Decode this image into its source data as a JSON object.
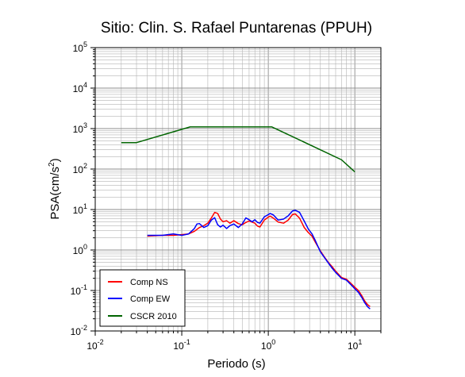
{
  "chart_data": {
    "type": "line",
    "title": "Sitio: Clin. S. Rafael Puntarenas (PPUH)",
    "xlabel": "Periodo (s)",
    "ylabel_base": "PSA(cm/s",
    "ylabel_sup": "2",
    "ylabel_tail": ")",
    "xscale": "log",
    "yscale": "log",
    "xlim": [
      0.01,
      20
    ],
    "ylim": [
      0.01,
      100000
    ],
    "grid": true,
    "legend_position": "bottom-left",
    "x_ticks": [
      {
        "base": "10",
        "exp": "-2",
        "value": 0.01
      },
      {
        "base": "10",
        "exp": "-1",
        "value": 0.1
      },
      {
        "base": "10",
        "exp": "0",
        "value": 1
      },
      {
        "base": "10",
        "exp": "1",
        "value": 10
      }
    ],
    "y_ticks": [
      {
        "base": "10",
        "exp": "-2",
        "value": 0.01
      },
      {
        "base": "10",
        "exp": "-1",
        "value": 0.1
      },
      {
        "base": "10",
        "exp": "0",
        "value": 1
      },
      {
        "base": "10",
        "exp": "1",
        "value": 10
      },
      {
        "base": "10",
        "exp": "2",
        "value": 100
      },
      {
        "base": "10",
        "exp": "3",
        "value": 1000
      },
      {
        "base": "10",
        "exp": "4",
        "value": 10000
      },
      {
        "base": "10",
        "exp": "5",
        "value": 100000
      }
    ],
    "series": [
      {
        "name": "Comp NS",
        "color": "#ff0000",
        "points": [
          [
            0.04,
            2.2
          ],
          [
            0.06,
            2.3
          ],
          [
            0.08,
            2.3
          ],
          [
            0.1,
            2.4
          ],
          [
            0.12,
            2.5
          ],
          [
            0.14,
            2.9
          ],
          [
            0.16,
            3.6
          ],
          [
            0.18,
            4.0
          ],
          [
            0.2,
            4.6
          ],
          [
            0.22,
            6.2
          ],
          [
            0.24,
            8.5
          ],
          [
            0.26,
            8.0
          ],
          [
            0.28,
            5.8
          ],
          [
            0.3,
            5.0
          ],
          [
            0.33,
            5.3
          ],
          [
            0.36,
            4.6
          ],
          [
            0.4,
            5.3
          ],
          [
            0.45,
            4.5
          ],
          [
            0.5,
            4.2
          ],
          [
            0.55,
            4.8
          ],
          [
            0.6,
            5.2
          ],
          [
            0.7,
            4.6
          ],
          [
            0.75,
            3.9
          ],
          [
            0.8,
            3.7
          ],
          [
            0.9,
            5.5
          ],
          [
            1.0,
            6.5
          ],
          [
            1.05,
            6.9
          ],
          [
            1.15,
            6.1
          ],
          [
            1.3,
            4.9
          ],
          [
            1.5,
            4.6
          ],
          [
            1.7,
            5.5
          ],
          [
            1.9,
            7.5
          ],
          [
            2.05,
            7.8
          ],
          [
            2.3,
            6.1
          ],
          [
            2.6,
            3.6
          ],
          [
            2.9,
            2.7
          ],
          [
            3.2,
            2.2
          ],
          [
            3.5,
            1.55
          ],
          [
            4.0,
            0.95
          ],
          [
            4.5,
            0.65
          ],
          [
            5.0,
            0.48
          ],
          [
            5.5,
            0.38
          ],
          [
            6.0,
            0.3
          ],
          [
            7.0,
            0.21
          ],
          [
            8.0,
            0.19
          ],
          [
            9.0,
            0.15
          ],
          [
            10.0,
            0.12
          ],
          [
            11.0,
            0.1
          ],
          [
            12.0,
            0.075
          ],
          [
            13.0,
            0.055
          ],
          [
            14.0,
            0.045
          ],
          [
            15.0,
            0.04
          ]
        ]
      },
      {
        "name": "Comp EW",
        "color": "#0000ff",
        "points": [
          [
            0.04,
            2.3
          ],
          [
            0.06,
            2.3
          ],
          [
            0.08,
            2.5
          ],
          [
            0.1,
            2.3
          ],
          [
            0.12,
            2.5
          ],
          [
            0.14,
            3.4
          ],
          [
            0.15,
            4.4
          ],
          [
            0.16,
            4.5
          ],
          [
            0.18,
            3.6
          ],
          [
            0.2,
            4.0
          ],
          [
            0.22,
            5.5
          ],
          [
            0.24,
            6.3
          ],
          [
            0.26,
            4.2
          ],
          [
            0.28,
            3.7
          ],
          [
            0.3,
            4.1
          ],
          [
            0.33,
            3.4
          ],
          [
            0.36,
            4.0
          ],
          [
            0.4,
            4.4
          ],
          [
            0.45,
            3.6
          ],
          [
            0.5,
            4.4
          ],
          [
            0.55,
            6.2
          ],
          [
            0.6,
            5.6
          ],
          [
            0.65,
            5.0
          ],
          [
            0.7,
            5.6
          ],
          [
            0.75,
            4.8
          ],
          [
            0.8,
            4.6
          ],
          [
            0.9,
            6.6
          ],
          [
            1.0,
            7.5
          ],
          [
            1.05,
            8.0
          ],
          [
            1.15,
            7.3
          ],
          [
            1.3,
            5.5
          ],
          [
            1.5,
            5.8
          ],
          [
            1.7,
            7.0
          ],
          [
            1.9,
            9.2
          ],
          [
            2.05,
            9.6
          ],
          [
            2.3,
            8.5
          ],
          [
            2.6,
            5.2
          ],
          [
            2.9,
            3.3
          ],
          [
            3.2,
            2.5
          ],
          [
            3.5,
            1.7
          ],
          [
            4.0,
            0.9
          ],
          [
            4.5,
            0.63
          ],
          [
            5.0,
            0.46
          ],
          [
            5.5,
            0.35
          ],
          [
            6.0,
            0.28
          ],
          [
            7.0,
            0.2
          ],
          [
            8.0,
            0.18
          ],
          [
            9.0,
            0.14
          ],
          [
            10.0,
            0.11
          ],
          [
            11.0,
            0.09
          ],
          [
            12.0,
            0.068
          ],
          [
            13.0,
            0.05
          ],
          [
            14.0,
            0.04
          ],
          [
            15.0,
            0.035
          ]
        ]
      },
      {
        "name": "CSCR 2010",
        "color": "#006400",
        "points": [
          [
            0.02,
            450
          ],
          [
            0.03,
            450
          ],
          [
            0.125,
            1100
          ],
          [
            1.1,
            1100
          ],
          [
            7.0,
            170
          ],
          [
            10.0,
            85
          ]
        ]
      }
    ]
  }
}
